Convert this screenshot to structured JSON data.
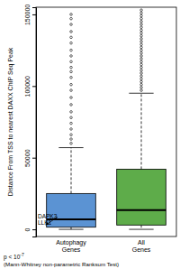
{
  "chart_data": {
    "type": "box",
    "y_label": "Distance From TSS to nearest DAXX ChIP Seq Peak",
    "categories": [
      "Autophagy Genes",
      "All Genes"
    ],
    "ylim": [
      -5000,
      155000
    ],
    "yticks": [
      0,
      50000,
      100000,
      150000
    ],
    "series": [
      {
        "color": "#5b93d3",
        "whisker_low": 0,
        "q1": 1500,
        "median": 7000,
        "q3": 25000,
        "whisker_high": 57000,
        "outliers": [
          60000,
          63000,
          66000,
          70000,
          74000,
          78000,
          82000,
          87000,
          92000,
          97000,
          101000,
          106000,
          110000,
          113000,
          117000,
          121000,
          125000,
          130000,
          134000,
          138000,
          143000,
          147000,
          150000
        ]
      },
      {
        "color": "#5eac4a",
        "whisker_low": 0,
        "q1": 3000,
        "median": 13500,
        "q3": 42000,
        "whisker_high": 95000,
        "outliers": [
          97000,
          99000,
          101000,
          103000,
          105000,
          107000,
          109000,
          111000,
          113000,
          115000,
          117000,
          119000,
          121000,
          123000,
          125000,
          127000,
          129000,
          131000,
          133000,
          135000,
          137000,
          139000,
          141000,
          143000,
          145000,
          147000,
          149000,
          151000,
          153000
        ]
      }
    ],
    "annotations": [
      {
        "text": "DAPK3",
        "value": 3000
      },
      {
        "text": "LLK1",
        "value": 3000
      }
    ],
    "footnote": {
      "text": "p < 10",
      "exponent": "-7",
      "subtext": "(Mann-Whitney non-parametric Ranksum Test)"
    }
  }
}
